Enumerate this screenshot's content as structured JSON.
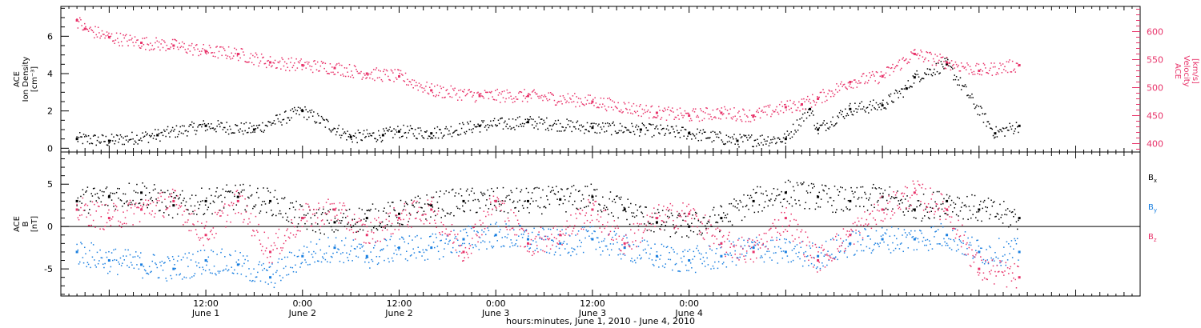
{
  "chart_data": [
    {
      "type": "scatter",
      "panel": "top",
      "left_axis": {
        "label_lines": [
          "ACE",
          "Ion Density",
          "[cm⁻³]"
        ],
        "ylim": [
          -0.2,
          7.6
        ],
        "ticks": [
          0,
          2,
          4,
          6
        ],
        "color": "#000000"
      },
      "right_axis": {
        "label_lines": [
          "ACE",
          "Velocity",
          "[km/s]"
        ],
        "ylim": [
          385,
          645
        ],
        "ticks": [
          400,
          450,
          500,
          550,
          600
        ],
        "color": "#e8336a"
      },
      "series": [
        {
          "axis": "left",
          "color": "#000000",
          "x": [
            -4,
            0,
            6,
            12,
            18,
            24,
            30,
            34,
            36,
            40,
            46,
            52,
            60,
            66,
            72,
            78,
            84,
            87,
            88,
            92,
            96,
            99,
            100,
            104,
            110,
            113
          ],
          "y": [
            0.5,
            0.4,
            0.7,
            1.2,
            1.0,
            2.0,
            0.6,
            0.7,
            0.9,
            0.8,
            1.2,
            1.4,
            1.1,
            1.0,
            0.8,
            0.4,
            0.5,
            2.1,
            1.0,
            2.1,
            2.3,
            3.2,
            3.8,
            4.5,
            0.8,
            1.2
          ]
        },
        {
          "axis": "right",
          "color": "#e8336a",
          "x": [
            -4,
            -3,
            0,
            4,
            8,
            12,
            16,
            20,
            24,
            28,
            32,
            36,
            40,
            46,
            52,
            60,
            68,
            72,
            76,
            80,
            84,
            86,
            88,
            92,
            96,
            100,
            104,
            108,
            113
          ],
          "y": [
            620,
            605,
            590,
            580,
            575,
            565,
            560,
            545,
            540,
            535,
            525,
            520,
            495,
            485,
            485,
            475,
            455,
            450,
            455,
            450,
            465,
            470,
            480,
            510,
            520,
            560,
            545,
            530,
            540
          ]
        }
      ]
    },
    {
      "type": "scatter",
      "panel": "bottom",
      "left_axis": {
        "label_lines": [
          "ACE",
          "B",
          "[nT]"
        ],
        "ylim": [
          -8.2,
          8.8
        ],
        "ticks": [
          -5,
          0,
          5
        ]
      },
      "zero_line": 0,
      "legend": [
        {
          "text": "B",
          "sub": "x",
          "color": "#000000"
        },
        {
          "text": "B",
          "sub": "y",
          "color": "#1a7fe0"
        },
        {
          "text": "B",
          "sub": "z",
          "color": "#e8336a"
        }
      ],
      "series": [
        {
          "name": "Bx",
          "color": "#000000",
          "x": [
            -4,
            0,
            4,
            8,
            12,
            16,
            20,
            24,
            28,
            32,
            36,
            40,
            44,
            48,
            52,
            56,
            60,
            64,
            68,
            72,
            76,
            80,
            84,
            88,
            92,
            96,
            100,
            104,
            108,
            113
          ],
          "y": [
            3,
            3.5,
            4,
            2.5,
            3,
            3.5,
            3,
            1,
            0.5,
            1,
            1.5,
            2.5,
            3,
            3,
            3,
            3.2,
            3.5,
            2,
            0.5,
            0,
            1,
            3,
            4,
            3.5,
            3,
            3.5,
            2,
            3,
            2,
            1
          ]
        },
        {
          "name": "By",
          "color": "#1a7fe0",
          "x": [
            -4,
            0,
            4,
            8,
            12,
            16,
            20,
            24,
            28,
            32,
            36,
            40,
            44,
            48,
            52,
            56,
            60,
            64,
            68,
            72,
            76,
            80,
            84,
            88,
            92,
            96,
            100,
            104,
            108,
            113
          ],
          "y": [
            -3,
            -4,
            -4.5,
            -5,
            -4,
            -4.5,
            -6,
            -3.5,
            -2.5,
            -3.5,
            -2.5,
            -2.5,
            -1.5,
            -1,
            -1.5,
            -2,
            -1.5,
            -2.5,
            -3.5,
            -4,
            -3.5,
            -2.5,
            -3,
            -3.5,
            -2,
            -1.5,
            -1.5,
            -1,
            -3,
            -3
          ]
        },
        {
          "name": "Bz",
          "color": "#e8336a",
          "x": [
            -4,
            0,
            4,
            8,
            12,
            16,
            20,
            24,
            28,
            32,
            36,
            40,
            44,
            48,
            52,
            56,
            60,
            64,
            68,
            72,
            76,
            80,
            84,
            88,
            92,
            96,
            100,
            104,
            108,
            113
          ],
          "y": [
            2,
            1,
            2,
            3,
            -1,
            3,
            -3,
            1,
            2,
            -1,
            1,
            2,
            -3,
            3,
            -2,
            -1,
            2,
            -2,
            1,
            1.5,
            -2,
            -3,
            1,
            -4,
            -1,
            2,
            4,
            2,
            -5,
            -6
          ]
        }
      ]
    }
  ],
  "x_axis": {
    "range_hours": [
      -6,
      128
    ],
    "ticks": [
      {
        "h": 12,
        "time": "12:00",
        "date": "June 1"
      },
      {
        "h": 24,
        "time": "0:00",
        "date": "June 2"
      },
      {
        "h": 36,
        "time": "12:00",
        "date": "June 2"
      },
      {
        "h": 48,
        "time": "0:00",
        "date": "June 3"
      },
      {
        "h": 60,
        "time": "12:00",
        "date": "June 3"
      },
      {
        "h": 72,
        "time": "0:00",
        "date": "June 4"
      }
    ],
    "label": "hours:minutes, June  1, 2010 - June  4, 2010"
  },
  "colors": {
    "black": "#000000",
    "pink": "#e8336a",
    "blue": "#1a7fe0"
  }
}
